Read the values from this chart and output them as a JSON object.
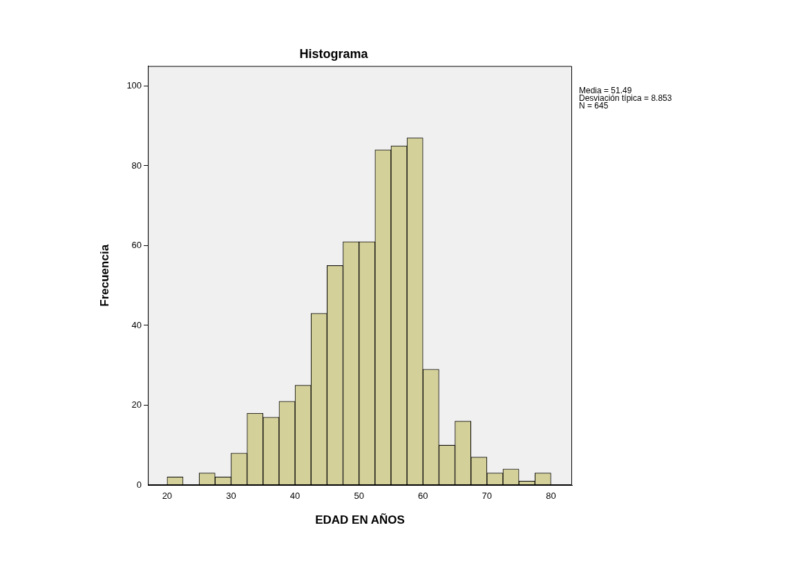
{
  "chart_data": {
    "type": "histogram",
    "title": "Histograma",
    "xlabel": "EDAD EN AÑOS",
    "ylabel": "Frecuencia",
    "bins": [
      20,
      22.5,
      25,
      27.5,
      30,
      32.5,
      35,
      37.5,
      40,
      42.5,
      45,
      47.5,
      50,
      52.5,
      55,
      57.5,
      60,
      62.5,
      65,
      67.5,
      70,
      72.5,
      75,
      77.5,
      80
    ],
    "values": [
      2,
      0,
      3,
      2,
      8,
      18,
      17,
      21,
      25,
      43,
      55,
      61,
      61,
      84,
      85,
      87,
      29,
      10,
      16,
      7,
      3,
      4,
      1,
      3
    ],
    "color": "#d4d09a",
    "xlim": [
      17,
      83.3
    ],
    "xticks": [
      20,
      30,
      40,
      50,
      60,
      70,
      80
    ],
    "ylim": [
      0,
      105
    ],
    "yticks": [
      0,
      20,
      40,
      60,
      80,
      100
    ],
    "grid": false,
    "annotations": [
      "Media = 51.49",
      "Desviación típica = 8.853",
      "N = 645"
    ]
  }
}
